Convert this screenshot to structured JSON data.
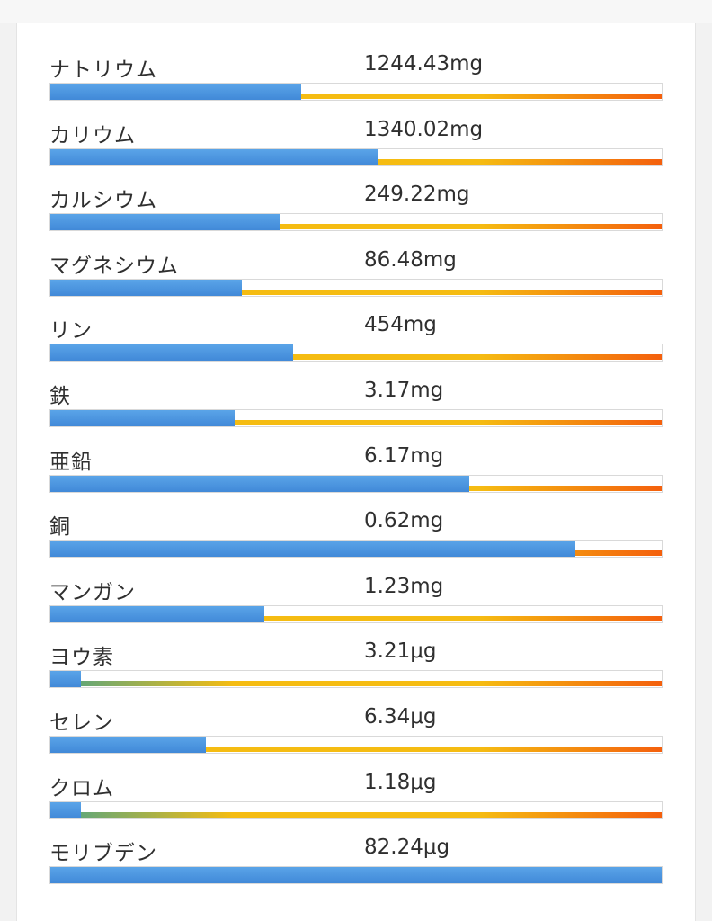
{
  "colors": {
    "fill": "#4a93df",
    "low": "#49a38a",
    "mid": "#f5bc12",
    "high": "#f4600d"
  },
  "nutrients": [
    {
      "name": "ナトリウム",
      "value": "1244.43mg",
      "level": 0.41
    },
    {
      "name": "カリウム",
      "value": "1340.02mg",
      "level": 0.537
    },
    {
      "name": "カルシウム",
      "value": "249.22mg",
      "level": 0.375
    },
    {
      "name": "マグネシウム",
      "value": "86.48mg",
      "level": 0.313
    },
    {
      "name": "リン",
      "value": "454mg",
      "level": 0.397
    },
    {
      "name": "鉄",
      "value": "3.17mg",
      "level": 0.302
    },
    {
      "name": "亜鉛",
      "value": "6.17mg",
      "level": 0.685
    },
    {
      "name": "銅",
      "value": "0.62mg",
      "level": 0.859
    },
    {
      "name": "マンガン",
      "value": "1.23mg",
      "level": 0.35
    },
    {
      "name": "ヨウ素",
      "value": "3.21μg",
      "level": 0.05
    },
    {
      "name": "セレン",
      "value": "6.34μg",
      "level": 0.254
    },
    {
      "name": "クロム",
      "value": "1.18μg",
      "level": 0.05
    },
    {
      "name": "モリブデン",
      "value": "82.24μg",
      "level": 1.0
    }
  ]
}
